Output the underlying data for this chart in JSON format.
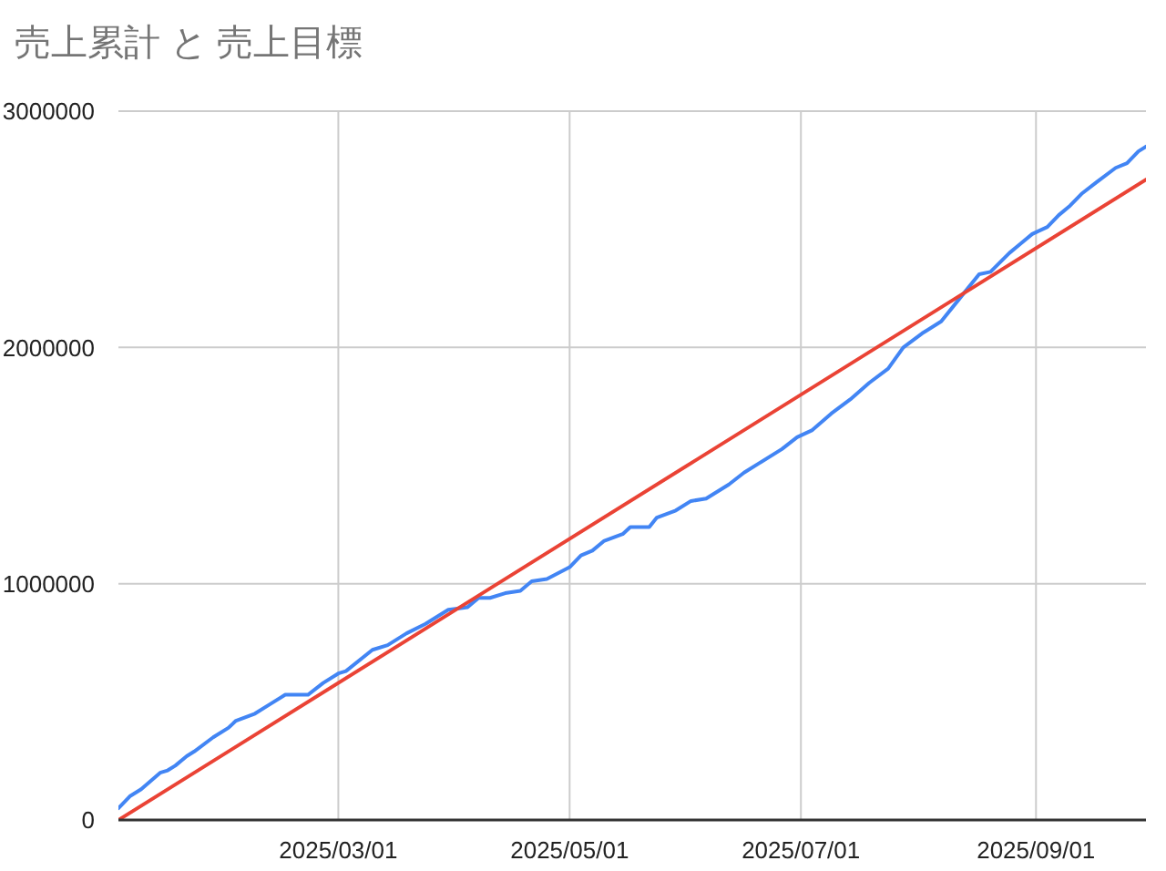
{
  "chart_data": {
    "type": "line",
    "title": "売上累計 と 売上目標",
    "series": [
      {
        "color": "#4285f4",
        "x": [
          "2025-01-02",
          "2025-01-05",
          "2025-01-08",
          "2025-01-13",
          "2025-01-15",
          "2025-01-17",
          "2025-01-20",
          "2025-01-22",
          "2025-01-27",
          "2025-01-31",
          "2025-02-02",
          "2025-02-07",
          "2025-02-11",
          "2025-02-15",
          "2025-02-21",
          "2025-02-25",
          "2025-03-01",
          "2025-03-03",
          "2025-03-10",
          "2025-03-14",
          "2025-03-19",
          "2025-03-24",
          "2025-03-30",
          "2025-04-04",
          "2025-04-07",
          "2025-04-10",
          "2025-04-14",
          "2025-04-18",
          "2025-04-21",
          "2025-04-25",
          "2025-05-01",
          "2025-05-04",
          "2025-05-07",
          "2025-05-10",
          "2025-05-15",
          "2025-05-17",
          "2025-05-22",
          "2025-05-24",
          "2025-05-29",
          "2025-06-02",
          "2025-06-06",
          "2025-06-12",
          "2025-06-16",
          "2025-06-20",
          "2025-06-26",
          "2025-06-30",
          "2025-07-04",
          "2025-07-09",
          "2025-07-14",
          "2025-07-19",
          "2025-07-24",
          "2025-07-28",
          "2025-08-02",
          "2025-08-07",
          "2025-08-12",
          "2025-08-17",
          "2025-08-20",
          "2025-08-25",
          "2025-08-28",
          "2025-08-31",
          "2025-09-04",
          "2025-09-07",
          "2025-09-10",
          "2025-09-13",
          "2025-09-17",
          "2025-09-22",
          "2025-09-25",
          "2025-09-28",
          "2025-09-30"
        ],
        "values": [
          50000,
          100000,
          130000,
          200000,
          210000,
          230000,
          270000,
          290000,
          350000,
          390000,
          420000,
          450000,
          490000,
          530000,
          530000,
          580000,
          620000,
          630000,
          720000,
          740000,
          790000,
          830000,
          890000,
          900000,
          940000,
          940000,
          960000,
          970000,
          1010000,
          1020000,
          1070000,
          1120000,
          1140000,
          1180000,
          1210000,
          1240000,
          1240000,
          1280000,
          1310000,
          1350000,
          1360000,
          1420000,
          1470000,
          1510000,
          1570000,
          1620000,
          1650000,
          1720000,
          1780000,
          1850000,
          1910000,
          2000000,
          2060000,
          2110000,
          2210000,
          2310000,
          2320000,
          2400000,
          2440000,
          2480000,
          2510000,
          2560000,
          2600000,
          2650000,
          2700000,
          2760000,
          2780000,
          2830000,
          2850000
        ]
      },
      {
        "color": "#ea4335",
        "x": [
          "2025-01-02",
          "2025-09-30"
        ],
        "values": [
          0,
          2710000
        ]
      }
    ],
    "xlim": [
      "2025-01-02",
      "2025-09-30"
    ],
    "xticks": [
      {
        "value": "2025-03-01",
        "label": "2025/03/01"
      },
      {
        "value": "2025-05-01",
        "label": "2025/05/01"
      },
      {
        "value": "2025-07-01",
        "label": "2025/07/01"
      },
      {
        "value": "2025-09-01",
        "label": "2025/09/01"
      }
    ],
    "ylim": [
      0,
      3000000
    ],
    "yticks": [
      0,
      1000000,
      2000000,
      3000000
    ],
    "grid": true,
    "marker": "none",
    "line_style": "solid"
  }
}
